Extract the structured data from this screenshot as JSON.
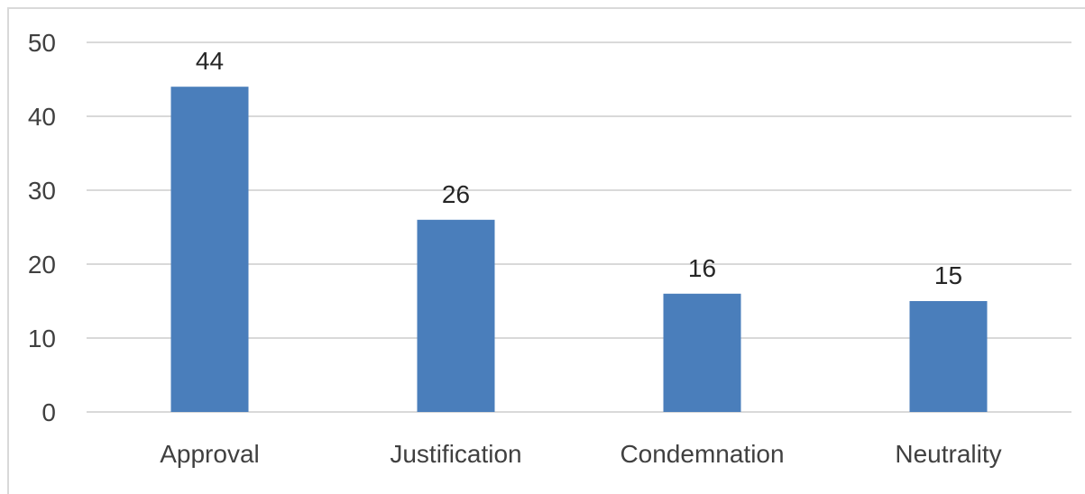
{
  "chart_data": {
    "type": "bar",
    "title": "",
    "xlabel": "",
    "ylabel": "",
    "categories": [
      "Approval",
      "Justification",
      "Condemnation",
      "Neutrality"
    ],
    "values": [
      44,
      26,
      16,
      15
    ],
    "data_labels": [
      "44",
      "26",
      "16",
      "15"
    ],
    "ylim": [
      0,
      50
    ],
    "yticks": [
      0,
      10,
      20,
      30,
      40,
      50
    ],
    "grid": true,
    "legend": "none",
    "colors": {
      "bar": "#4a7ebb",
      "grid": "#d9d9d9",
      "text": "#404040"
    }
  }
}
